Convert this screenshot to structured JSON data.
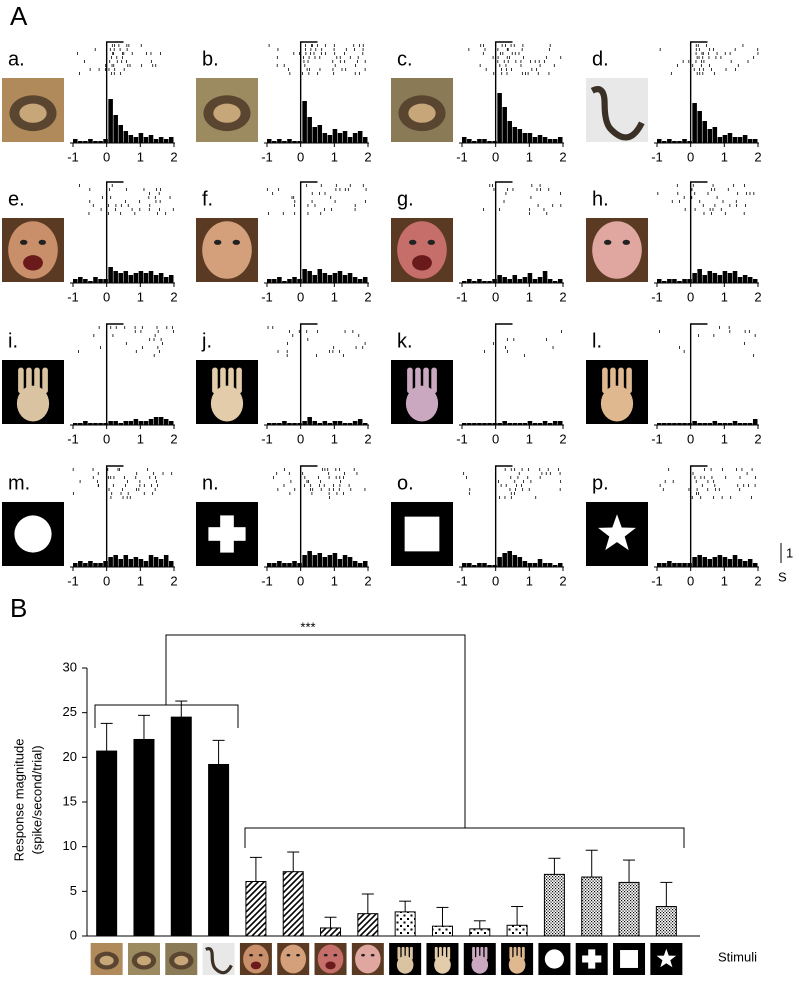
{
  "panel_a": {
    "label": "A",
    "xlim": [
      -1,
      2
    ],
    "xticks": [
      -1,
      0,
      1,
      2
    ],
    "scale_bar": 1,
    "time_unit": "S",
    "panels": [
      {
        "label": "a.",
        "psth": [
          0.2,
          0.1,
          0.1,
          0.2,
          0.1,
          0.1,
          0.2,
          2.2,
          1.4,
          0.9,
          0.6,
          0.4,
          0.3,
          0.5,
          0.3,
          0.4,
          0.2,
          0.3,
          0.2,
          0.3
        ]
      },
      {
        "label": "b.",
        "psth": [
          0.2,
          0.1,
          0.2,
          0.1,
          0.2,
          0.1,
          0.1,
          2.1,
          1.3,
          0.8,
          0.9,
          0.5,
          0.4,
          0.7,
          0.5,
          0.6,
          0.3,
          0.5,
          0.6,
          0.3
        ]
      },
      {
        "label": "c.",
        "psth": [
          0.3,
          0.2,
          0.1,
          0.2,
          0.2,
          0.1,
          0.1,
          2.5,
          1.8,
          1.1,
          0.8,
          0.7,
          0.5,
          0.5,
          0.3,
          0.4,
          0.3,
          0.2,
          0.2,
          0.3
        ]
      },
      {
        "label": "d.",
        "psth": [
          0.2,
          0.1,
          0.2,
          0.1,
          0.1,
          0.2,
          0.1,
          2.0,
          1.6,
          1.1,
          0.7,
          0.8,
          0.3,
          0.4,
          0.5,
          0.3,
          0.3,
          0.4,
          0.2,
          0.2
        ]
      },
      {
        "label": "e.",
        "psth": [
          0.2,
          0.3,
          0.2,
          0.1,
          0.3,
          0.2,
          0.2,
          0.8,
          0.6,
          0.5,
          0.6,
          0.4,
          0.5,
          0.6,
          0.5,
          0.6,
          0.4,
          0.5,
          0.3,
          0.4
        ]
      },
      {
        "label": "f.",
        "psth": [
          0.2,
          0.2,
          0.3,
          0.1,
          0.2,
          0.3,
          0.2,
          0.7,
          0.6,
          0.4,
          0.7,
          0.5,
          0.4,
          0.5,
          0.6,
          0.4,
          0.5,
          0.3,
          0.2,
          0.3
        ]
      },
      {
        "label": "g.",
        "psth": [
          0.1,
          0.2,
          0.1,
          0.2,
          0.1,
          0.1,
          0.2,
          0.4,
          0.3,
          0.2,
          0.4,
          0.2,
          0.3,
          0.5,
          0.2,
          0.3,
          0.6,
          0.2,
          0.1,
          0.2
        ]
      },
      {
        "label": "h.",
        "psth": [
          0.2,
          0.1,
          0.2,
          0.2,
          0.1,
          0.2,
          0.2,
          0.5,
          0.7,
          0.4,
          0.6,
          0.5,
          0.4,
          0.6,
          0.5,
          0.6,
          0.3,
          0.4,
          0.3,
          0.2
        ]
      },
      {
        "label": "i.",
        "psth": [
          0.1,
          0.1,
          0.2,
          0.1,
          0.1,
          0.1,
          0.1,
          0.2,
          0.2,
          0.1,
          0.2,
          0.2,
          0.3,
          0.2,
          0.2,
          0.3,
          0.4,
          0.4,
          0.3,
          0.2
        ]
      },
      {
        "label": "j.",
        "psth": [
          0.1,
          0.1,
          0.1,
          0.2,
          0.1,
          0.1,
          0.1,
          0.2,
          0.4,
          0.2,
          0.1,
          0.2,
          0.1,
          0.2,
          0.2,
          0.1,
          0.1,
          0.2,
          0.3,
          0.1
        ]
      },
      {
        "label": "k.",
        "psth": [
          0.1,
          0.1,
          0.1,
          0.1,
          0.1,
          0.1,
          0.1,
          0.1,
          0.2,
          0.1,
          0.1,
          0.1,
          0.1,
          0.2,
          0.1,
          0.1,
          0.2,
          0.1,
          0.2,
          0.2
        ]
      },
      {
        "label": "l.",
        "psth": [
          0.1,
          0.1,
          0.1,
          0.1,
          0.1,
          0.1,
          0.1,
          0.2,
          0.1,
          0.1,
          0.1,
          0.2,
          0.1,
          0.1,
          0.1,
          0.2,
          0.1,
          0.1,
          0.1,
          0.3
        ]
      },
      {
        "label": "m.",
        "psth": [
          0.2,
          0.3,
          0.2,
          0.3,
          0.2,
          0.2,
          0.3,
          0.5,
          0.6,
          0.4,
          0.6,
          0.4,
          0.5,
          0.4,
          0.3,
          0.6,
          0.5,
          0.4,
          0.6,
          0.3
        ]
      },
      {
        "label": "n.",
        "psth": [
          0.2,
          0.2,
          0.3,
          0.2,
          0.2,
          0.3,
          0.2,
          0.6,
          0.8,
          0.6,
          0.7,
          0.5,
          0.6,
          0.7,
          0.4,
          0.6,
          0.5,
          0.3,
          0.2,
          0.3
        ]
      },
      {
        "label": "o.",
        "psth": [
          0.2,
          0.2,
          0.1,
          0.2,
          0.2,
          0.1,
          0.1,
          0.5,
          0.7,
          0.8,
          0.6,
          0.5,
          0.3,
          0.2,
          0.2,
          0.4,
          0.2,
          0.2,
          0.1,
          0.2
        ]
      },
      {
        "label": "p.",
        "psth": [
          0.2,
          0.2,
          0.3,
          0.2,
          0.2,
          0.2,
          0.2,
          0.5,
          0.6,
          0.5,
          0.4,
          0.5,
          0.6,
          0.5,
          0.4,
          0.6,
          0.4,
          0.3,
          0.4,
          0.2
        ]
      }
    ]
  },
  "chart_data": {
    "type": "bar",
    "panel_label": "B",
    "ylabel": [
      "Response magnitude",
      "(spike/second/trial)"
    ],
    "xlabel": "Stimuli",
    "annotation": "***",
    "categories": [
      null,
      null,
      null,
      null,
      null,
      null,
      null,
      null,
      null,
      null,
      null,
      null,
      null,
      null,
      null,
      null
    ],
    "values": [
      20.7,
      22.0,
      24.5,
      19.2,
      6.1,
      7.2,
      0.9,
      2.5,
      2.7,
      1.1,
      0.8,
      1.2,
      6.9,
      6.6,
      6.0,
      3.3
    ],
    "errors": [
      3.1,
      2.7,
      1.8,
      2.7,
      2.7,
      2.2,
      1.2,
      2.2,
      1.2,
      2.1,
      0.9,
      2.1,
      1.8,
      3.0,
      2.5,
      2.7
    ],
    "patterns": [
      "solid",
      "solid",
      "solid",
      "solid",
      "hatch",
      "hatch",
      "hatch",
      "hatch",
      "sparse-dots",
      "sparse-dots",
      "sparse-dots",
      "sparse-dots",
      "dense-dots",
      "dense-dots",
      "dense-dots",
      "dense-dots"
    ],
    "ylim": [
      0,
      30
    ],
    "yticks": [
      0,
      5,
      10,
      15,
      20,
      25,
      30
    ]
  }
}
